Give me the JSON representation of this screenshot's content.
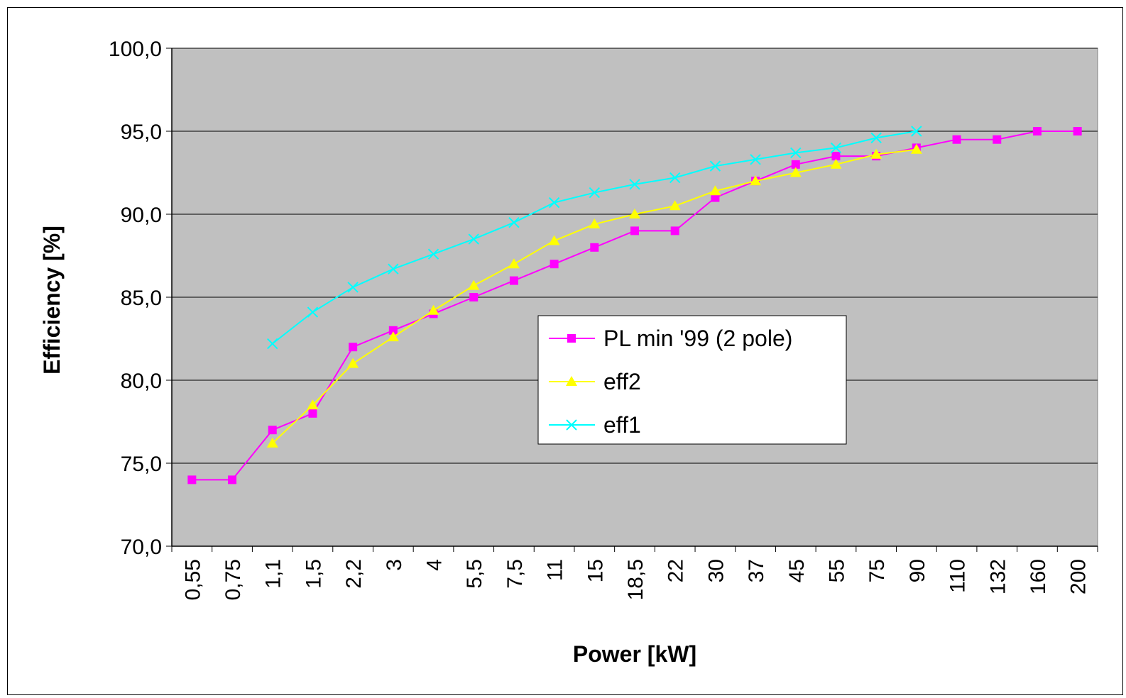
{
  "chart_data": {
    "type": "line",
    "title": "",
    "xlabel": "Power [kW]",
    "ylabel": "Efficiency [%]",
    "categories": [
      "0,55",
      "0,75",
      "1,1",
      "1,5",
      "2,2",
      "3",
      "4",
      "5,5",
      "7,5",
      "11",
      "15",
      "18,5",
      "22",
      "30",
      "37",
      "45",
      "55",
      "75",
      "90",
      "110",
      "132",
      "160",
      "200"
    ],
    "ylim": [
      70,
      100
    ],
    "yticks": [
      "70,0",
      "75,0",
      "80,0",
      "85,0",
      "90,0",
      "95,0",
      "100,0"
    ],
    "grid": true,
    "legend_position": "center-right",
    "colors": {
      "plot_background": "#c0c0c0",
      "grid": "#000000"
    },
    "series": [
      {
        "name": "PL min '99 (2 pole)",
        "color": "#ff00ff",
        "marker": "square",
        "values": [
          74.0,
          74.0,
          77.0,
          78.0,
          82.0,
          83.0,
          84.0,
          85.0,
          86.0,
          87.0,
          88.0,
          89.0,
          89.0,
          91.0,
          92.0,
          93.0,
          93.5,
          93.5,
          94.0,
          94.5,
          94.5,
          95.0,
          95.0
        ]
      },
      {
        "name": "eff2",
        "color": "#ffff00",
        "marker": "triangle",
        "values": [
          null,
          null,
          76.2,
          78.5,
          81.0,
          82.6,
          84.2,
          85.7,
          87.0,
          88.4,
          89.4,
          90.0,
          90.5,
          91.4,
          92.0,
          92.5,
          93.0,
          93.6,
          93.9,
          null,
          null,
          null,
          null
        ]
      },
      {
        "name": "eff1",
        "color": "#00ffff",
        "marker": "x",
        "values": [
          null,
          null,
          82.2,
          84.1,
          85.6,
          86.7,
          87.6,
          88.5,
          89.5,
          90.7,
          91.3,
          91.8,
          92.2,
          92.9,
          93.3,
          93.7,
          94.0,
          94.6,
          95.0,
          null,
          null,
          null,
          null
        ]
      }
    ]
  }
}
